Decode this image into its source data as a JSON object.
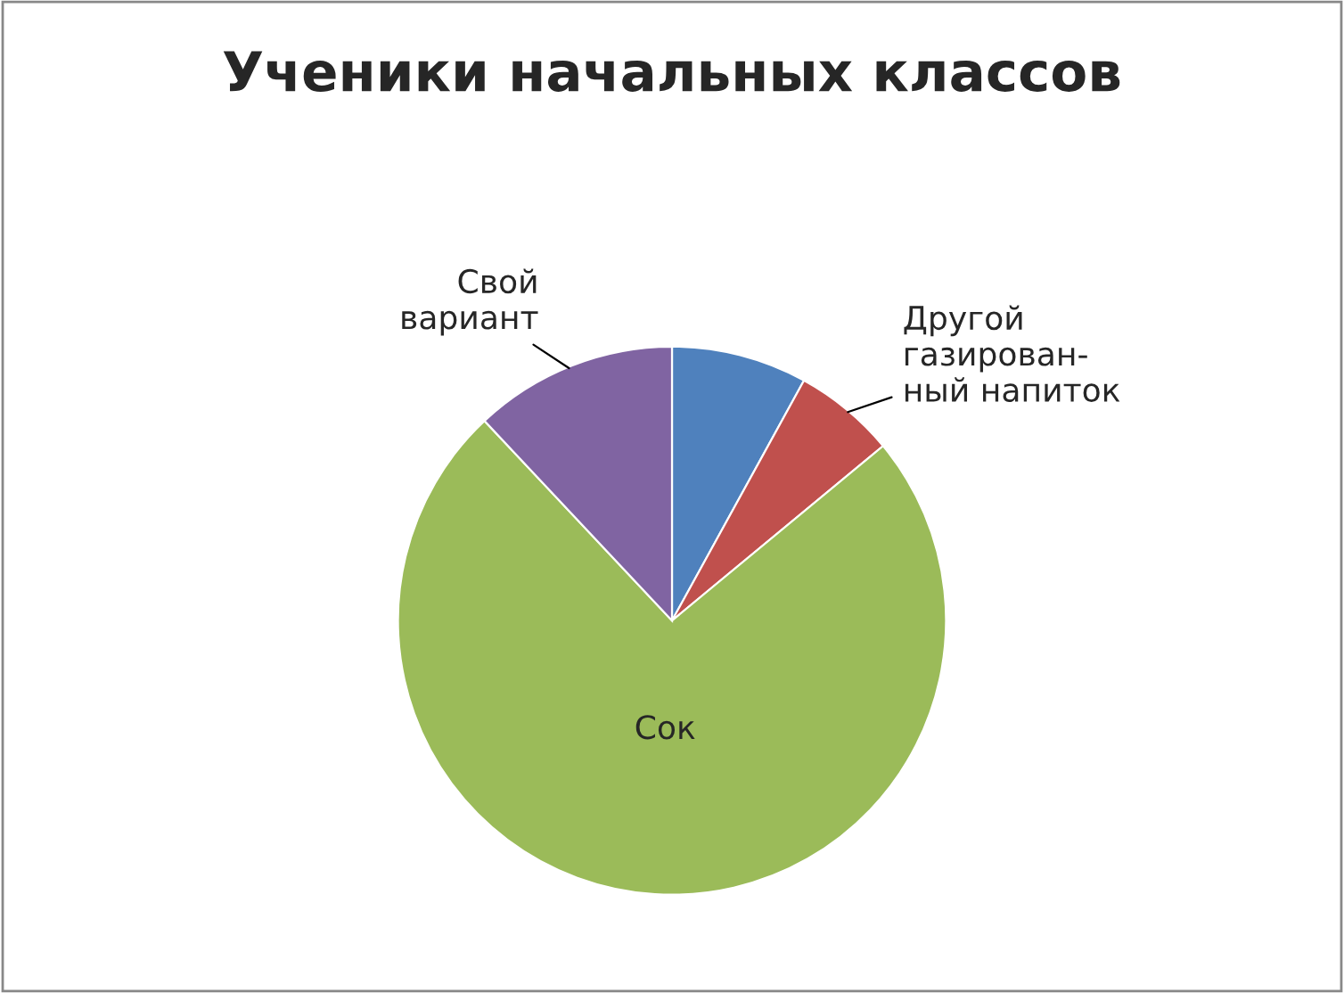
{
  "chart_data": {
    "type": "pie",
    "title": "Ученики начальных классов",
    "categories": [
      null,
      "Другой\nгазирован-\nный напиток",
      "Сок",
      "Свой\nвариант"
    ],
    "values": [
      8,
      6,
      74,
      12
    ],
    "colors": [
      "#4f81bd",
      "#c0504d",
      "#9bbb59",
      "#8064a2"
    ],
    "legend": false
  }
}
